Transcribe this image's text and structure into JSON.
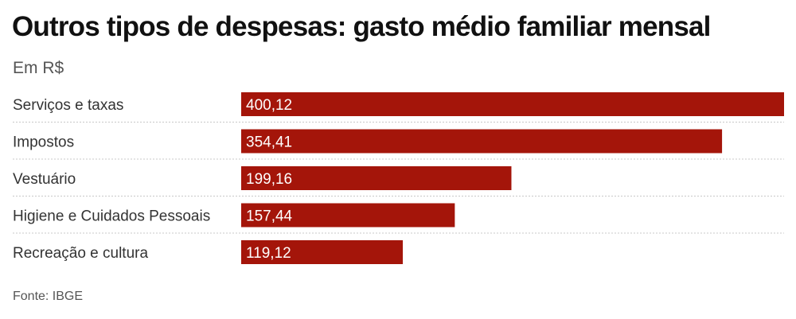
{
  "title": "Outros tipos de despesas: gasto médio familiar mensal",
  "subtitle": "Em R$",
  "source": "Fonte: IBGE",
  "colors": {
    "bar": "#a4150a",
    "separator": "#c8c8c8"
  },
  "chart_data": {
    "type": "bar",
    "orientation": "horizontal",
    "categories": [
      "Serviços e taxas",
      "Impostos",
      "Vestuário",
      "Higiene e Cuidados Pessoais",
      "Recreação e cultura"
    ],
    "values": [
      400.12,
      354.41,
      199.16,
      157.44,
      119.12
    ],
    "value_labels": [
      "400,12",
      "354,41",
      "199,16",
      "157,44",
      "119,12"
    ],
    "xlim": [
      0,
      400.12
    ],
    "grid": false,
    "legend": "none"
  }
}
